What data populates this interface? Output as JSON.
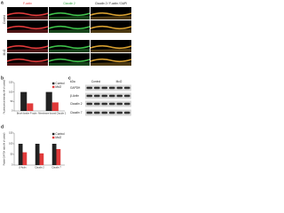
{
  "panel_labels": [
    "a",
    "b",
    "c",
    "d"
  ],
  "images": {
    "columns": [
      "F-actin",
      "Claudin 2",
      "Claudin 2 / F-actin / DAPI"
    ],
    "rows": [
      "Control",
      "Mcl2"
    ]
  },
  "blot": {
    "unit": "kDa",
    "lanes": [
      "Control",
      "Mcl2"
    ],
    "rows": [
      "GAPDH",
      "β-Actin",
      "Claudin 2",
      "Claudin 7"
    ]
  },
  "chart_data": [
    {
      "type": "bar",
      "y_label": "Fluorescence intensity (% of control)",
      "categories": [
        "Brush border F-actin",
        "Membrane-bound Claudin 2"
      ],
      "series": [
        {
          "name": "Control",
          "color": "#222222",
          "values": [
            100,
            100
          ]
        },
        {
          "name": "Mcl2",
          "color": "#e03a3a",
          "values": [
            40,
            45
          ]
        }
      ],
      "ylim": [
        0,
        150
      ],
      "yticks": [
        0,
        50,
        100,
        150
      ],
      "legend": "upper right"
    },
    {
      "type": "bar",
      "y_label": "Protein/GAPDH ratio (% of control)",
      "categories": [
        "β-Actin",
        "Claudin 2",
        "Claudin 7"
      ],
      "series": [
        {
          "name": "Control",
          "color": "#222222",
          "values": [
            100,
            100,
            100
          ]
        },
        {
          "name": "Mcl2",
          "color": "#e03a3a",
          "values": [
            60,
            55,
            75
          ]
        }
      ],
      "ylim": [
        0,
        150
      ],
      "yticks": [
        0,
        50,
        100,
        150
      ],
      "legend": "upper right"
    }
  ]
}
